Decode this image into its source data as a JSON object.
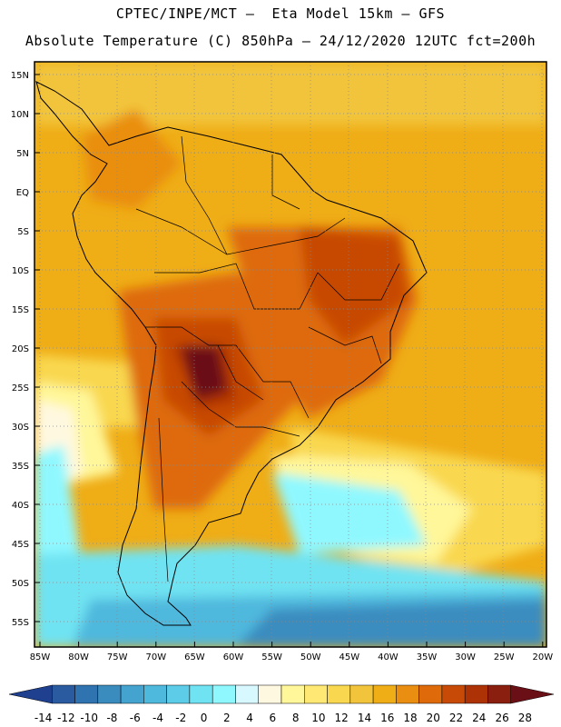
{
  "title_line1": "CPTEC/INPE/MCT –  Eta Model 15km – GFS",
  "title_line2": "Absolute Temperature (C) 850hPa – 24/12/2020 12UTC fct=200h",
  "lat_labels": [
    "15N",
    "10N",
    "5N",
    "EQ",
    "5S",
    "10S",
    "15S",
    "20S",
    "25S",
    "30S",
    "35S",
    "40S",
    "45S",
    "50S",
    "55S"
  ],
  "lon_labels": [
    "85W",
    "80W",
    "75W",
    "70W",
    "65W",
    "60W",
    "55W",
    "50W",
    "45W",
    "40W",
    "35W",
    "30W",
    "25W",
    "20W"
  ],
  "colorbar": {
    "colors": [
      "#1f3f8f",
      "#2a5aa0",
      "#2f73b0",
      "#3a8cbf",
      "#44a3cf",
      "#4fb8dd",
      "#5ccce8",
      "#6fe3f2",
      "#8ff8ff",
      "#d8f8ff",
      "#fff8e0",
      "#fff79a",
      "#ffe873",
      "#f9d84f",
      "#f2c43b",
      "#efad16",
      "#e98e10",
      "#de6a0a",
      "#c74a06",
      "#ad3206",
      "#8a1f0f",
      "#6b0f17"
    ],
    "labels": [
      "-14",
      "-12",
      "-10",
      "-8",
      "-6",
      "-4",
      "-2",
      "0",
      "2",
      "4",
      "6",
      "8",
      "10",
      "12",
      "14",
      "16",
      "18",
      "20",
      "22",
      "24",
      "26",
      "28"
    ]
  }
}
